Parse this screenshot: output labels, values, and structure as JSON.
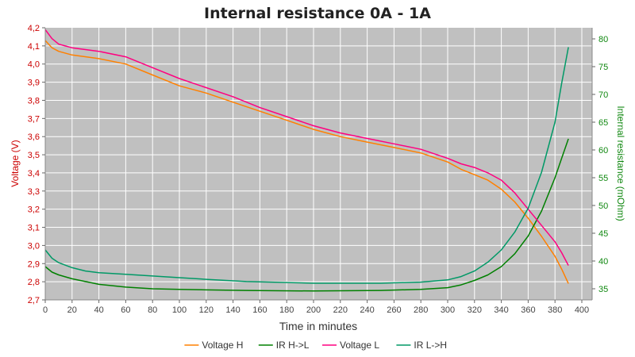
{
  "chart_data": {
    "type": "line",
    "title": "Internal resistance  0A - 1A",
    "xlabel": "Time in minutes",
    "ylabel_left": "Voltage (V)",
    "ylabel_right": "Internal resistance (mOhm)",
    "xlim": [
      0,
      405
    ],
    "ylim_left": [
      2.7,
      4.2
    ],
    "ylim_right": [
      33,
      82
    ],
    "x_ticks": [
      0,
      20,
      40,
      60,
      80,
      100,
      120,
      140,
      160,
      180,
      200,
      220,
      240,
      260,
      280,
      300,
      320,
      340,
      360,
      380,
      400
    ],
    "y_ticks_left": [
      2.7,
      2.8,
      2.9,
      3.0,
      3.1,
      3.2,
      3.3,
      3.4,
      3.5,
      3.6,
      3.7,
      3.8,
      3.9,
      4.0,
      4.1,
      4.2
    ],
    "y_ticks_left_labels": [
      "2,7",
      "2,8",
      "2,9",
      "3,0",
      "3,1",
      "3,2",
      "3,3",
      "3,4",
      "3,5",
      "3,6",
      "3,7",
      "3,8",
      "3,9",
      "4,0",
      "4,1",
      "4,2"
    ],
    "y_ticks_right": [
      35,
      40,
      45,
      50,
      55,
      60,
      65,
      70,
      75,
      80
    ],
    "grid": true,
    "legend_position": "bottom",
    "colors": {
      "plot_background": "#c0c0c0",
      "grid": "#ffffff"
    },
    "series": [
      {
        "name": "Voltage H",
        "axis": "left",
        "color": "#ff8000",
        "x": [
          0,
          5,
          10,
          20,
          40,
          60,
          80,
          100,
          120,
          140,
          160,
          180,
          200,
          220,
          240,
          260,
          280,
          300,
          310,
          320,
          330,
          340,
          350,
          360,
          370,
          380,
          385,
          390
        ],
        "y": [
          4.13,
          4.09,
          4.07,
          4.05,
          4.03,
          4.0,
          3.94,
          3.88,
          3.84,
          3.79,
          3.74,
          3.69,
          3.64,
          3.6,
          3.57,
          3.54,
          3.51,
          3.46,
          3.42,
          3.39,
          3.36,
          3.31,
          3.24,
          3.15,
          3.05,
          2.94,
          2.87,
          2.79
        ]
      },
      {
        "name": "IR H->L",
        "axis": "right",
        "color": "#008000",
        "x": [
          0,
          5,
          10,
          20,
          30,
          40,
          60,
          80,
          100,
          120,
          150,
          200,
          250,
          280,
          300,
          310,
          320,
          330,
          340,
          350,
          360,
          370,
          380,
          385,
          390
        ],
        "y": [
          39,
          38,
          37.5,
          36.8,
          36.3,
          35.8,
          35.3,
          35,
          34.9,
          34.8,
          34.7,
          34.6,
          34.7,
          34.9,
          35.2,
          35.7,
          36.5,
          37.5,
          39,
          41.3,
          44.5,
          49,
          55,
          58.5,
          62
        ]
      },
      {
        "name": "Voltage L",
        "axis": "left",
        "color": "#ff0080",
        "x": [
          0,
          5,
          10,
          20,
          40,
          60,
          80,
          100,
          120,
          140,
          160,
          180,
          200,
          220,
          240,
          260,
          280,
          300,
          310,
          320,
          330,
          340,
          350,
          360,
          370,
          380,
          385,
          390
        ],
        "y": [
          4.19,
          4.14,
          4.11,
          4.09,
          4.07,
          4.04,
          3.98,
          3.92,
          3.87,
          3.82,
          3.76,
          3.71,
          3.66,
          3.62,
          3.59,
          3.56,
          3.53,
          3.48,
          3.45,
          3.43,
          3.4,
          3.36,
          3.29,
          3.2,
          3.11,
          3.02,
          2.96,
          2.89
        ]
      },
      {
        "name": "IR L->H",
        "axis": "right",
        "color": "#009966",
        "x": [
          0,
          5,
          10,
          20,
          30,
          40,
          60,
          80,
          100,
          120,
          150,
          200,
          250,
          280,
          300,
          310,
          320,
          330,
          340,
          350,
          360,
          370,
          380,
          385,
          390
        ],
        "y": [
          42,
          40.5,
          39.7,
          38.8,
          38.2,
          37.9,
          37.6,
          37.3,
          37,
          36.7,
          36.3,
          36,
          36,
          36.2,
          36.6,
          37.2,
          38.2,
          39.8,
          42,
          45.2,
          49.5,
          56,
          65,
          72,
          78.5
        ]
      }
    ]
  }
}
